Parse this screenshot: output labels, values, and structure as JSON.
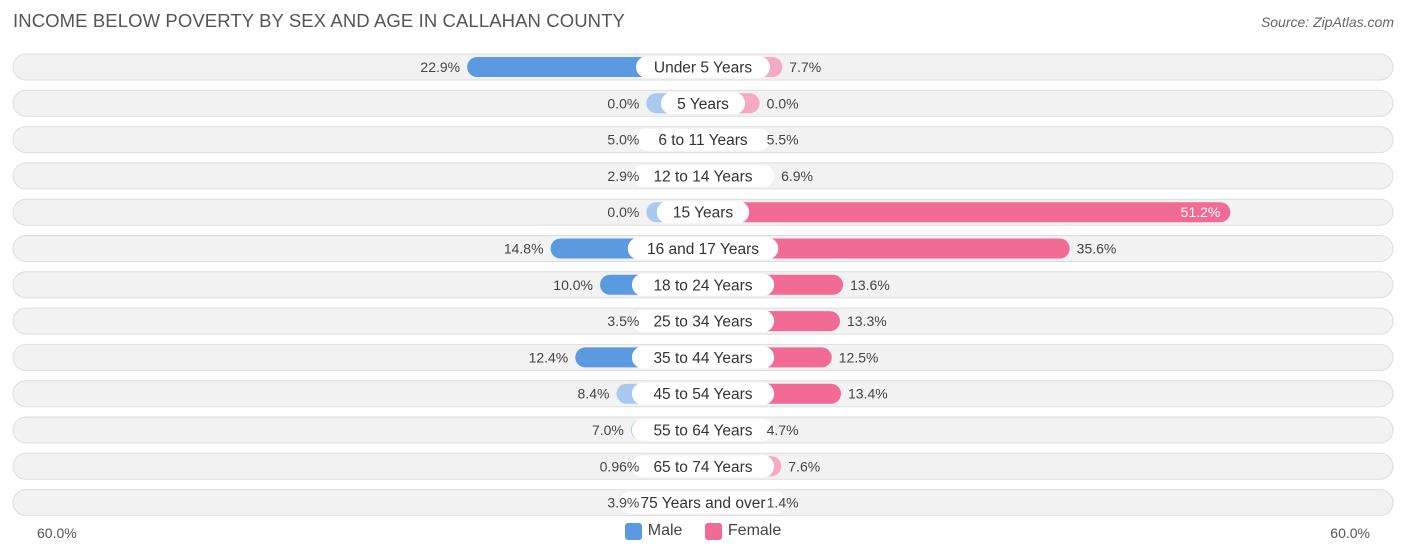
{
  "title": "INCOME BELOW POVERTY BY SEX AND AGE IN CALLAHAN COUNTY",
  "source": "Source: ZipAtlas.com",
  "colors": {
    "male_strong": "#5b9ae0",
    "male_light": "#a9c9ee",
    "female_strong": "#f26b95",
    "female_light": "#f6a9c2",
    "row_bg": "#f2f2f2",
    "row_border": "#dddddd"
  },
  "legend": {
    "male_label": "Male",
    "female_label": "Female"
  },
  "axis": {
    "left_label": "60.0%",
    "right_label": "60.0%"
  },
  "chart_data": {
    "type": "bar",
    "orientation": "horizontal-diverging",
    "xlim": [
      -60,
      60
    ],
    "categories": [
      "Under 5 Years",
      "5 Years",
      "6 to 11 Years",
      "12 to 14 Years",
      "15 Years",
      "16 and 17 Years",
      "18 to 24 Years",
      "25 to 34 Years",
      "35 to 44 Years",
      "45 to 54 Years",
      "55 to 64 Years",
      "65 to 74 Years",
      "75 Years and over"
    ],
    "series": [
      {
        "name": "Male",
        "values": [
          22.9,
          0.0,
          5.0,
          2.9,
          0.0,
          14.8,
          10.0,
          3.5,
          12.4,
          8.4,
          7.0,
          0.96,
          3.9
        ],
        "labels": [
          "22.9%",
          "0.0%",
          "5.0%",
          "2.9%",
          "0.0%",
          "14.8%",
          "10.0%",
          "3.5%",
          "12.4%",
          "8.4%",
          "7.0%",
          "0.96%",
          "3.9%"
        ]
      },
      {
        "name": "Female",
        "values": [
          7.7,
          0.0,
          5.5,
          6.9,
          51.2,
          35.6,
          13.6,
          13.3,
          12.5,
          13.4,
          4.7,
          7.6,
          1.4
        ],
        "labels": [
          "7.7%",
          "0.0%",
          "5.5%",
          "6.9%",
          "51.2%",
          "35.6%",
          "13.6%",
          "13.3%",
          "12.5%",
          "13.4%",
          "4.7%",
          "7.6%",
          "1.4%"
        ]
      }
    ],
    "legend_position": "bottom-center"
  }
}
